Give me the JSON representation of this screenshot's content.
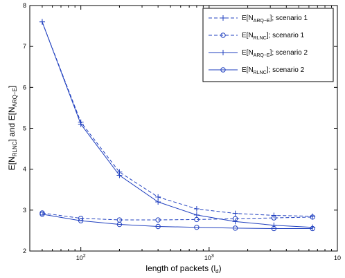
{
  "chart_data": {
    "type": "line",
    "x_scale": "log",
    "xlim": [
      40,
      10000
    ],
    "ylim": [
      2,
      8
    ],
    "x_ticks": [
      100,
      1000,
      10000
    ],
    "x_tick_labels": [
      {
        "base": "10",
        "exp": "2"
      },
      {
        "base": "10",
        "exp": "3"
      },
      {
        "base": "10",
        "exp": ""
      }
    ],
    "y_ticks": [
      "2",
      "3",
      "4",
      "5",
      "6",
      "7",
      "8"
    ],
    "xlabel": {
      "main": "length of packets (l",
      "sub": "d",
      "tail": ")"
    },
    "ylabel": {
      "p1": "E[N",
      "s1": "RLNC",
      "p2": "] and E[N",
      "s2": "ARQ−E",
      "p3": "]"
    },
    "legend_position": "top-right",
    "grid": false,
    "x": [
      50,
      100,
      200,
      400,
      800,
      1600,
      3200,
      6400
    ],
    "series": [
      {
        "legend": {
          "prefix": "E[N",
          "sub": "ARQ−E",
          "suffix": "]; scenario 1"
        },
        "style": "dashed",
        "marker": "plus",
        "color": "#1f3fbf",
        "values": [
          7.6,
          5.15,
          3.93,
          3.32,
          3.03,
          2.92,
          2.87,
          2.85
        ]
      },
      {
        "legend": {
          "prefix": "E[N",
          "sub": "RLNC",
          "suffix": "]; scenario 1"
        },
        "style": "dashed",
        "marker": "circle",
        "color": "#1f3fbf",
        "values": [
          2.93,
          2.8,
          2.76,
          2.76,
          2.77,
          2.79,
          2.81,
          2.83
        ]
      },
      {
        "legend": {
          "prefix": "E[N",
          "sub": "ARQ−E",
          "suffix": "]; scenario 2"
        },
        "style": "solid",
        "marker": "plus",
        "color": "#1f3fbf",
        "values": [
          7.6,
          5.1,
          3.85,
          3.2,
          2.88,
          2.72,
          2.63,
          2.58
        ]
      },
      {
        "legend": {
          "prefix": "E[N",
          "sub": "RLNC",
          "suffix": "]; scenario 2"
        },
        "style": "solid",
        "marker": "circle",
        "color": "#1f3fbf",
        "values": [
          2.9,
          2.74,
          2.65,
          2.6,
          2.58,
          2.56,
          2.55,
          2.55
        ]
      }
    ]
  }
}
